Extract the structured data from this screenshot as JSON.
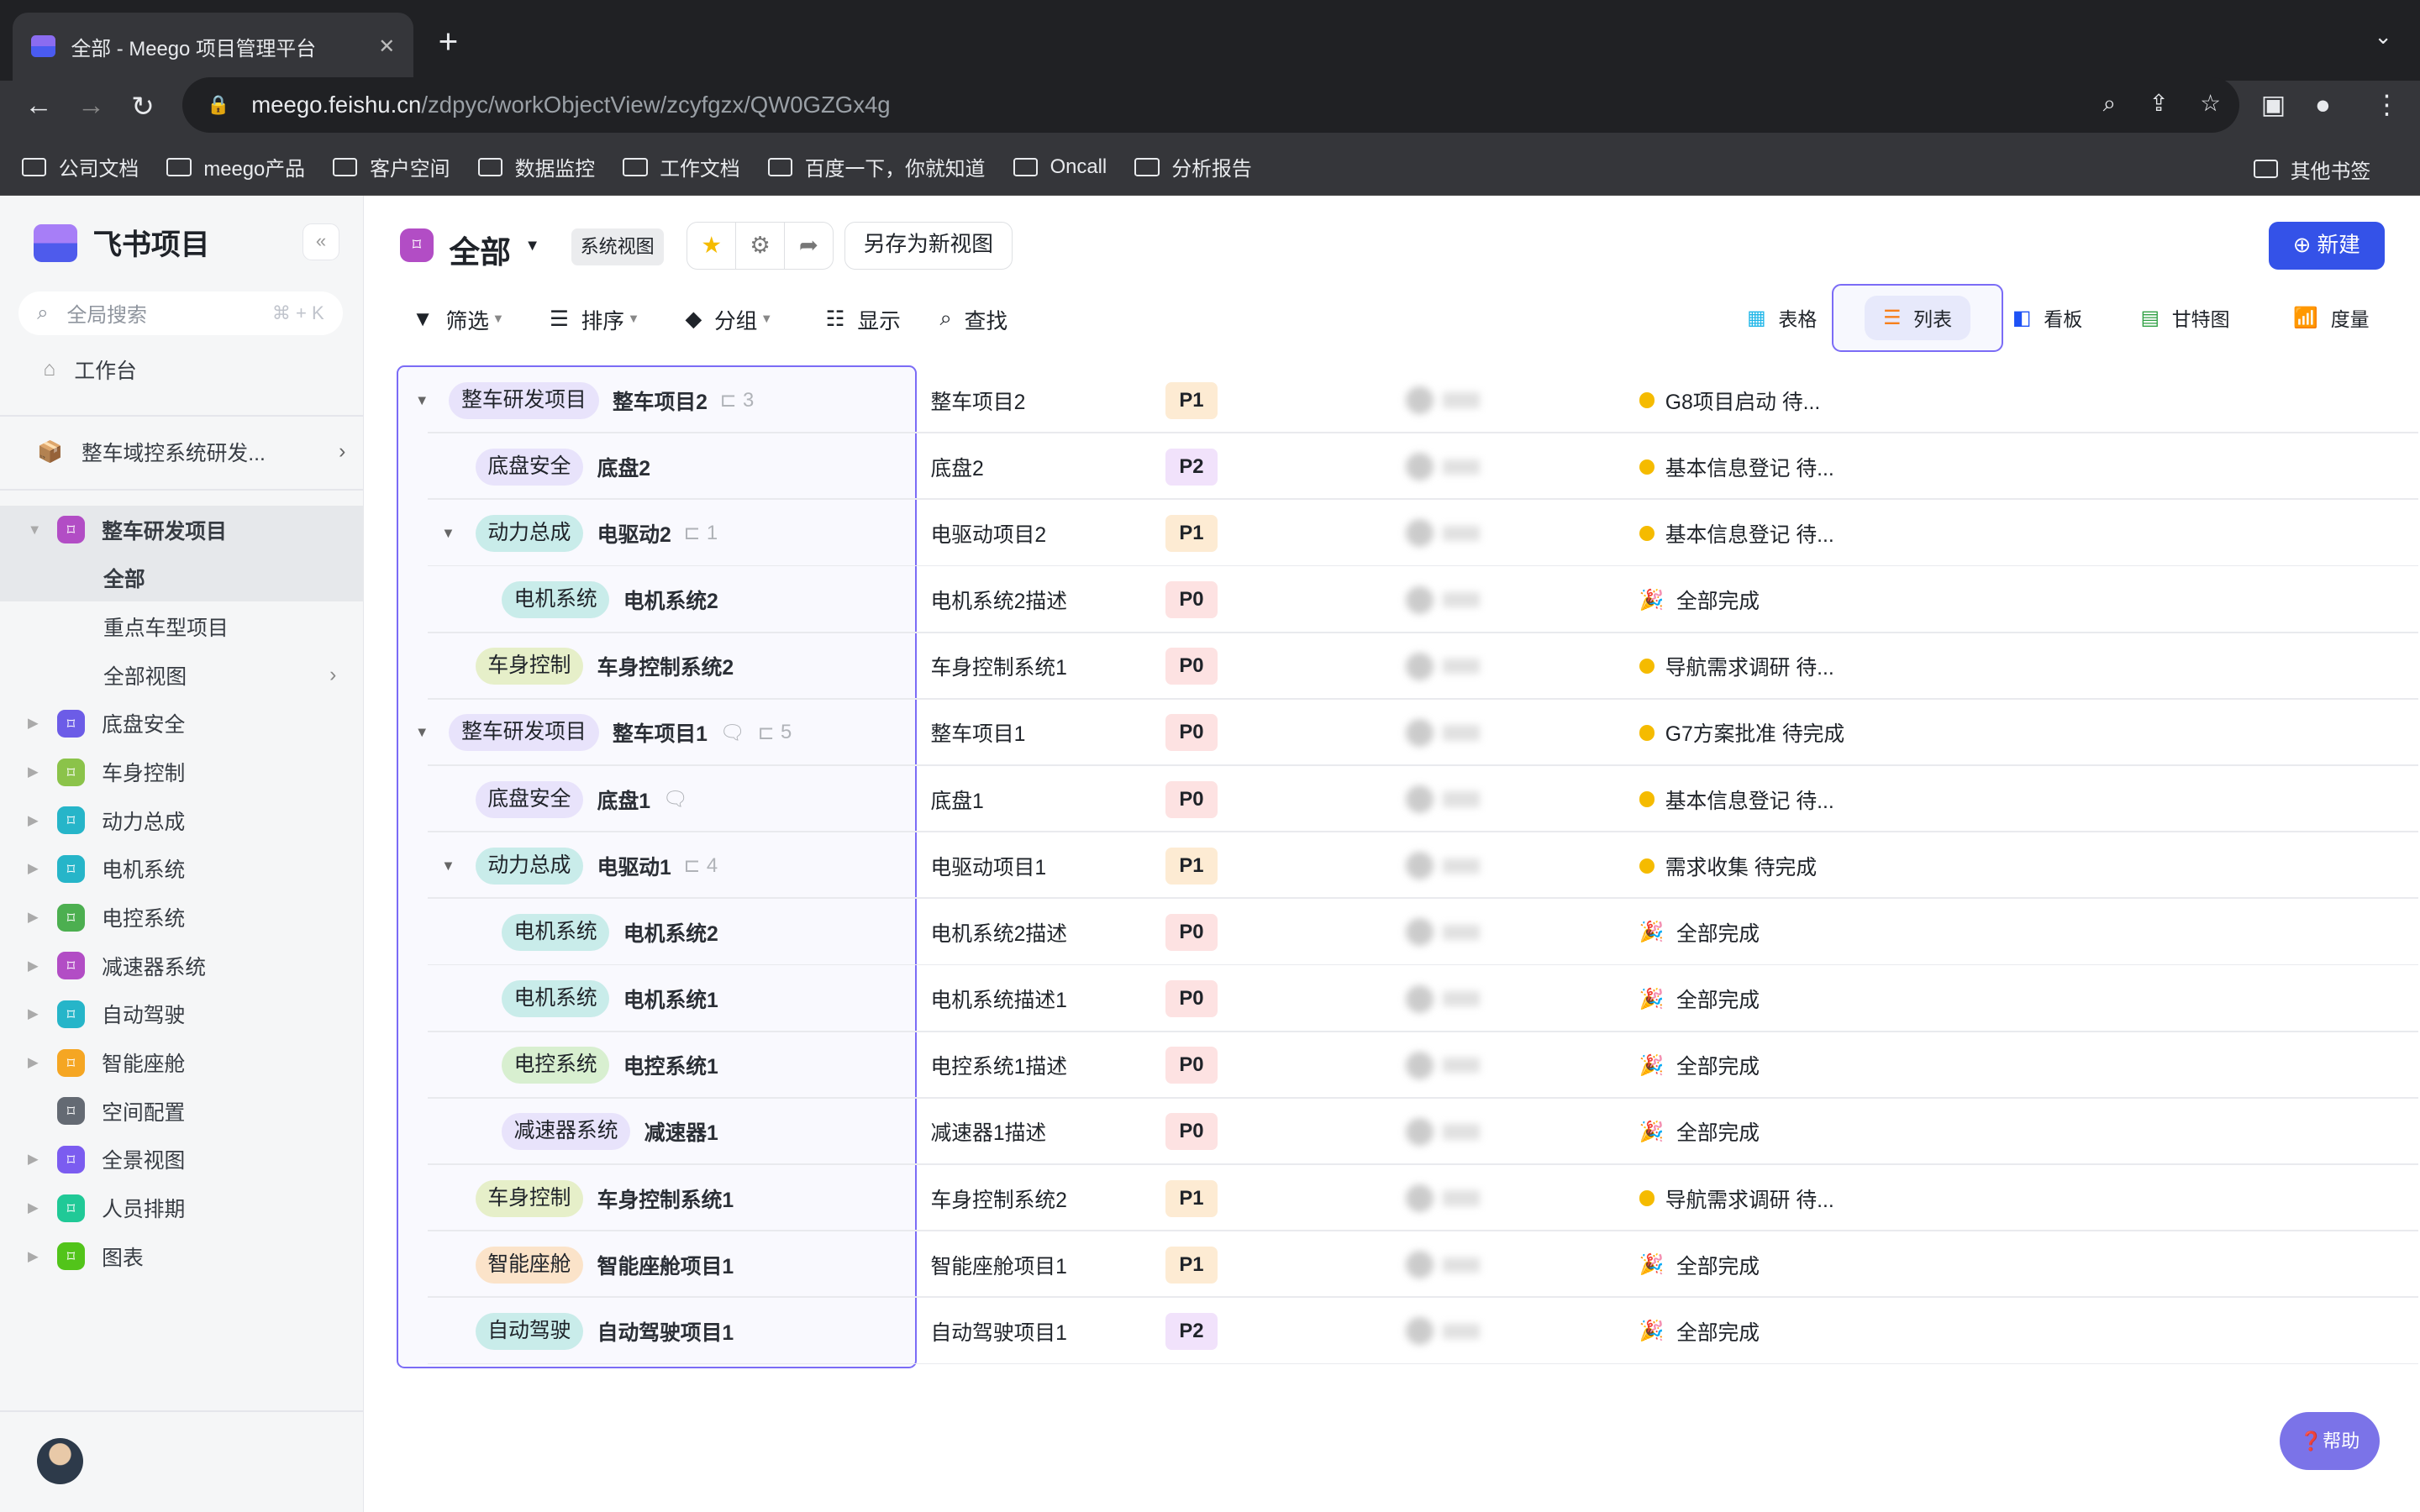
{
  "browser": {
    "tab_title": "全部 - Meego 项目管理平台",
    "url_host": "meego.feishu.cn",
    "url_path": "/zdpyc/workObjectView/zcyfgzx/QW0GZGx4g",
    "bookmarks": [
      "公司文档",
      "meego产品",
      "客户空间",
      "数据监控",
      "工作文档",
      "百度一下，你就知道",
      "Oncall",
      "分析报告"
    ],
    "other_bookmarks": "其他书签"
  },
  "sidebar": {
    "brand": "飞书项目",
    "search_placeholder": "全局搜索",
    "search_shortcut": "⌘ + K",
    "workbench": "工作台",
    "project": "整车域控系统研发...",
    "space": "整车研发项目",
    "subitems": [
      "全部",
      "重点车型项目",
      "全部视图"
    ],
    "items": [
      {
        "label": "底盘安全",
        "color": "#6c5ce7"
      },
      {
        "label": "车身控制",
        "color": "#8bc34a"
      },
      {
        "label": "动力总成",
        "color": "#26b5c9"
      },
      {
        "label": "电机系统",
        "color": "#26b5c9"
      },
      {
        "label": "电控系统",
        "color": "#4caf50"
      },
      {
        "label": "减速器系统",
        "color": "#b24dc5"
      },
      {
        "label": "自动驾驶",
        "color": "#26b5c9"
      },
      {
        "label": "智能座舱",
        "color": "#f5a623"
      },
      {
        "label": "空间配置",
        "color": "#646a73"
      },
      {
        "label": "全景视图",
        "color": "#7b5cf0"
      },
      {
        "label": "人员排期",
        "color": "#20c997"
      },
      {
        "label": "图表",
        "color": "#52c41a"
      }
    ]
  },
  "header": {
    "title": "全部",
    "badge": "系统视图",
    "save_as": "另存为新视图",
    "new": "新建"
  },
  "toolbar": {
    "filter": "筛选",
    "sort": "排序",
    "group": "分组",
    "display": "显示",
    "find": "查找"
  },
  "views": [
    {
      "label": "表格",
      "icon": "table-icon",
      "active": false
    },
    {
      "label": "列表",
      "icon": "list-icon",
      "active": true
    },
    {
      "label": "看板",
      "icon": "kanban-icon",
      "active": false
    },
    {
      "label": "甘特图",
      "icon": "gantt-icon",
      "active": false
    },
    {
      "label": "度量",
      "icon": "chart-icon",
      "active": false
    }
  ],
  "rows": [
    {
      "level": 0,
      "toggle": true,
      "tag": "整车研发项目",
      "tag_color": "#e8e3fb",
      "name": "整车项目2",
      "count": "3",
      "desc": "整车项目2",
      "priority": "P1",
      "status": "G8项目启动 待...",
      "done": false
    },
    {
      "level": 1,
      "toggle": false,
      "tag": "底盘安全",
      "tag_color": "#e8e3fb",
      "name": "底盘2",
      "desc": "底盘2",
      "priority": "P2",
      "status": "基本信息登记 待...",
      "done": false
    },
    {
      "level": 1,
      "toggle": true,
      "tag": "动力总成",
      "tag_color": "#c9ecea",
      "name": "电驱动2",
      "count": "1",
      "desc": "电驱动项目2",
      "priority": "P1",
      "status": "基本信息登记 待...",
      "done": false
    },
    {
      "level": 2,
      "toggle": false,
      "tag": "电机系统",
      "tag_color": "#c9ecea",
      "name": "电机系统2",
      "desc": "电机系统2描述",
      "priority": "P0",
      "status": "全部完成",
      "done": true
    },
    {
      "level": 1,
      "toggle": false,
      "tag": "车身控制",
      "tag_color": "#e6efc9",
      "name": "车身控制系统2",
      "desc": "车身控制系统1",
      "priority": "P0",
      "status": "导航需求调研 待...",
      "done": false
    },
    {
      "level": 0,
      "toggle": true,
      "tag": "整车研发项目",
      "tag_color": "#e8e3fb",
      "name": "整车项目1",
      "comment": true,
      "count": "5",
      "desc": "整车项目1",
      "priority": "P0",
      "status": "G7方案批准 待完成",
      "done": false
    },
    {
      "level": 1,
      "toggle": false,
      "tag": "底盘安全",
      "tag_color": "#e8e3fb",
      "name": "底盘1",
      "comment": true,
      "desc": "底盘1",
      "priority": "P0",
      "status": "基本信息登记 待...",
      "done": false
    },
    {
      "level": 1,
      "toggle": true,
      "tag": "动力总成",
      "tag_color": "#c9ecea",
      "name": "电驱动1",
      "count": "4",
      "desc": "电驱动项目1",
      "priority": "P1",
      "status": "需求收集 待完成",
      "done": false
    },
    {
      "level": 2,
      "toggle": false,
      "tag": "电机系统",
      "tag_color": "#c9ecea",
      "name": "电机系统2",
      "desc": "电机系统2描述",
      "priority": "P0",
      "status": "全部完成",
      "done": true
    },
    {
      "level": 2,
      "toggle": false,
      "tag": "电机系统",
      "tag_color": "#c9ecea",
      "name": "电机系统1",
      "desc": "电机系统描述1",
      "priority": "P0",
      "status": "全部完成",
      "done": true
    },
    {
      "level": 2,
      "toggle": false,
      "tag": "电控系统",
      "tag_color": "#d8efd0",
      "name": "电控系统1",
      "desc": "电控系统1描述",
      "priority": "P0",
      "status": "全部完成",
      "done": true
    },
    {
      "level": 2,
      "toggle": false,
      "tag": "减速器系统",
      "tag_color": "#e8e3fb",
      "name": "减速器1",
      "desc": "减速器1描述",
      "priority": "P0",
      "status": "全部完成",
      "done": true
    },
    {
      "level": 1,
      "toggle": false,
      "tag": "车身控制",
      "tag_color": "#e6efc9",
      "name": "车身控制系统1",
      "desc": "车身控制系统2",
      "priority": "P1",
      "status": "导航需求调研 待...",
      "done": false
    },
    {
      "level": 1,
      "toggle": false,
      "tag": "智能座舱",
      "tag_color": "#fbe3c9",
      "name": "智能座舱项目1",
      "desc": "智能座舱项目1",
      "priority": "P1",
      "status": "全部完成",
      "done": true
    },
    {
      "level": 1,
      "toggle": false,
      "tag": "自动驾驶",
      "tag_color": "#c9ecea",
      "name": "自动驾驶项目1",
      "desc": "自动驾驶项目1",
      "priority": "P2",
      "status": "全部完成",
      "done": true
    }
  ],
  "priority_colors": {
    "P0": "#fde2e2",
    "P1": "#fdebd3",
    "P2": "#f1e2fb"
  },
  "help": "帮助"
}
